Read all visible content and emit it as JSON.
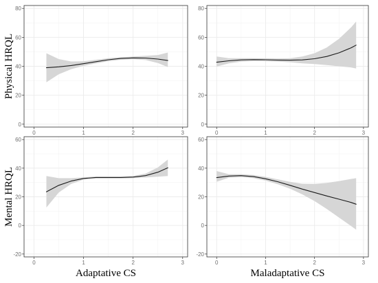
{
  "chart_data": {
    "type": "line",
    "row_labels": [
      "Physical HRQL",
      "Mental HRQL"
    ],
    "col_labels": [
      "Adaptative CS",
      "Maladaptative CS"
    ],
    "grid": true,
    "panels": [
      {
        "x": [
          0.25,
          0.5,
          0.75,
          1.0,
          1.25,
          1.5,
          1.75,
          2.0,
          2.25,
          2.5,
          2.7
        ],
        "y": [
          39.0,
          39.6,
          40.5,
          41.8,
          43.2,
          44.5,
          45.4,
          45.8,
          45.7,
          45.0,
          44.0
        ],
        "lower": [
          29,
          34.5,
          38,
          40.3,
          42,
          43.5,
          44.5,
          44.8,
          44.3,
          42.3,
          39.5
        ],
        "upper": [
          49,
          45,
          43.3,
          43.4,
          44.5,
          45.6,
          46.3,
          46.8,
          47.2,
          47.8,
          49.5
        ],
        "xlim": [
          -0.2,
          3.1
        ],
        "ylim": [
          -2,
          82
        ],
        "xticks": [
          0,
          1,
          2,
          3
        ],
        "yticks": [
          0,
          20,
          40,
          60,
          80
        ],
        "xlabel": "",
        "ylabel": "Physical HRQL"
      },
      {
        "x": [
          0.0,
          0.25,
          0.5,
          0.75,
          1.0,
          1.25,
          1.5,
          1.75,
          2.0,
          2.25,
          2.5,
          2.75,
          2.85
        ],
        "y": [
          42.8,
          43.8,
          44.4,
          44.6,
          44.5,
          44.3,
          44.2,
          44.4,
          45.2,
          46.8,
          49.3,
          52.8,
          54.6
        ],
        "lower": [
          39.8,
          42.0,
          43.2,
          43.6,
          43.5,
          43.2,
          42.8,
          42.0,
          41.5,
          40.8,
          40.0,
          39.2,
          38.5
        ],
        "upper": [
          46.8,
          45.6,
          45.6,
          45.6,
          45.5,
          45.4,
          45.6,
          46.8,
          49.0,
          53.0,
          59.0,
          67.0,
          71.0
        ],
        "xlim": [
          -0.2,
          3.1
        ],
        "ylim": [
          -2,
          82
        ],
        "xticks": [
          0,
          1,
          2,
          3
        ],
        "yticks": [
          0,
          20,
          40,
          60,
          80
        ],
        "xlabel": "",
        "ylabel": ""
      },
      {
        "x": [
          0.25,
          0.5,
          0.75,
          1.0,
          1.25,
          1.5,
          1.75,
          2.0,
          2.25,
          2.5,
          2.7
        ],
        "y": [
          23.5,
          28.0,
          31.0,
          32.8,
          33.5,
          33.5,
          33.5,
          33.8,
          34.8,
          37.2,
          40.3
        ],
        "lower": [
          12.5,
          23.0,
          29.0,
          32.0,
          32.8,
          32.8,
          32.8,
          33.0,
          33.5,
          34.0,
          34.5
        ],
        "upper": [
          34.5,
          33.0,
          33.0,
          33.6,
          34.2,
          34.2,
          34.2,
          34.6,
          36.2,
          40.5,
          46.0
        ],
        "xlim": [
          -0.2,
          3.1
        ],
        "ylim": [
          -22,
          62
        ],
        "xticks": [
          0,
          1,
          2,
          3
        ],
        "yticks": [
          -20,
          0,
          20,
          40,
          60
        ],
        "xlabel": "Adaptative CS",
        "ylabel": "Mental HRQL"
      },
      {
        "x": [
          0.0,
          0.25,
          0.5,
          0.75,
          1.0,
          1.25,
          1.5,
          1.75,
          2.0,
          2.25,
          2.5,
          2.75,
          2.85
        ],
        "y": [
          33.4,
          34.5,
          34.8,
          34.1,
          32.6,
          30.5,
          28.0,
          25.4,
          23.0,
          20.6,
          18.3,
          16.0,
          14.8
        ],
        "lower": [
          30.5,
          33.3,
          33.8,
          33.0,
          31.3,
          28.8,
          25.6,
          21.7,
          17.0,
          11.5,
          5.5,
          -0.5,
          -3.0
        ],
        "upper": [
          38.0,
          35.8,
          35.8,
          35.2,
          33.9,
          32.2,
          30.4,
          29.1,
          29.0,
          29.7,
          31.0,
          32.5,
          33.0
        ],
        "xlim": [
          -0.2,
          3.1
        ],
        "ylim": [
          -22,
          62
        ],
        "xticks": [
          0,
          1,
          2,
          3
        ],
        "yticks": [
          -20,
          0,
          20,
          40,
          60
        ],
        "xlabel": "Maladaptative CS",
        "ylabel": ""
      }
    ]
  },
  "colors": {
    "ribbon": "#d6d6d6",
    "line": "#1a1a1a",
    "grid": "#ebebeb",
    "frame": "#333333",
    "tick_text": "#6e6e6e"
  }
}
